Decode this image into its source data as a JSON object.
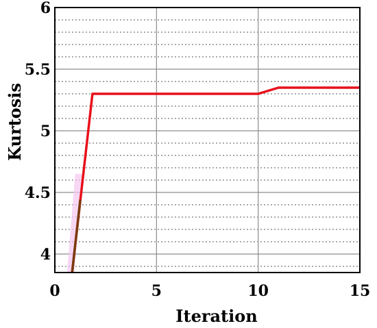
{
  "chart_data": {
    "type": "line",
    "title": "",
    "xlabel": "Iteration",
    "ylabel": "Kurtosis",
    "xlim": [
      0,
      15
    ],
    "ylim": [
      3.85,
      6
    ],
    "xticks": [
      0,
      5,
      10,
      15
    ],
    "yticks": [
      4,
      4.5,
      5,
      5.5,
      6
    ],
    "xtick_labels": [
      "0",
      "5",
      "10",
      "15"
    ],
    "ytick_labels": [
      "4",
      "4.5",
      "5",
      "5.5",
      "6"
    ],
    "grid": true,
    "minor_grid": true,
    "series": [
      {
        "color": "#e8101a",
        "x": [
          0.85,
          1.85,
          10,
          11,
          15
        ],
        "y": [
          3.85,
          5.3,
          5.3,
          5.35,
          5.35
        ]
      }
    ],
    "colors": {
      "line": "#e8101a",
      "shading": "#f3c6f0",
      "line_overlap": "#7a3a10",
      "major_grid": "#8c8c8c",
      "minor_grid": "#555555"
    }
  }
}
